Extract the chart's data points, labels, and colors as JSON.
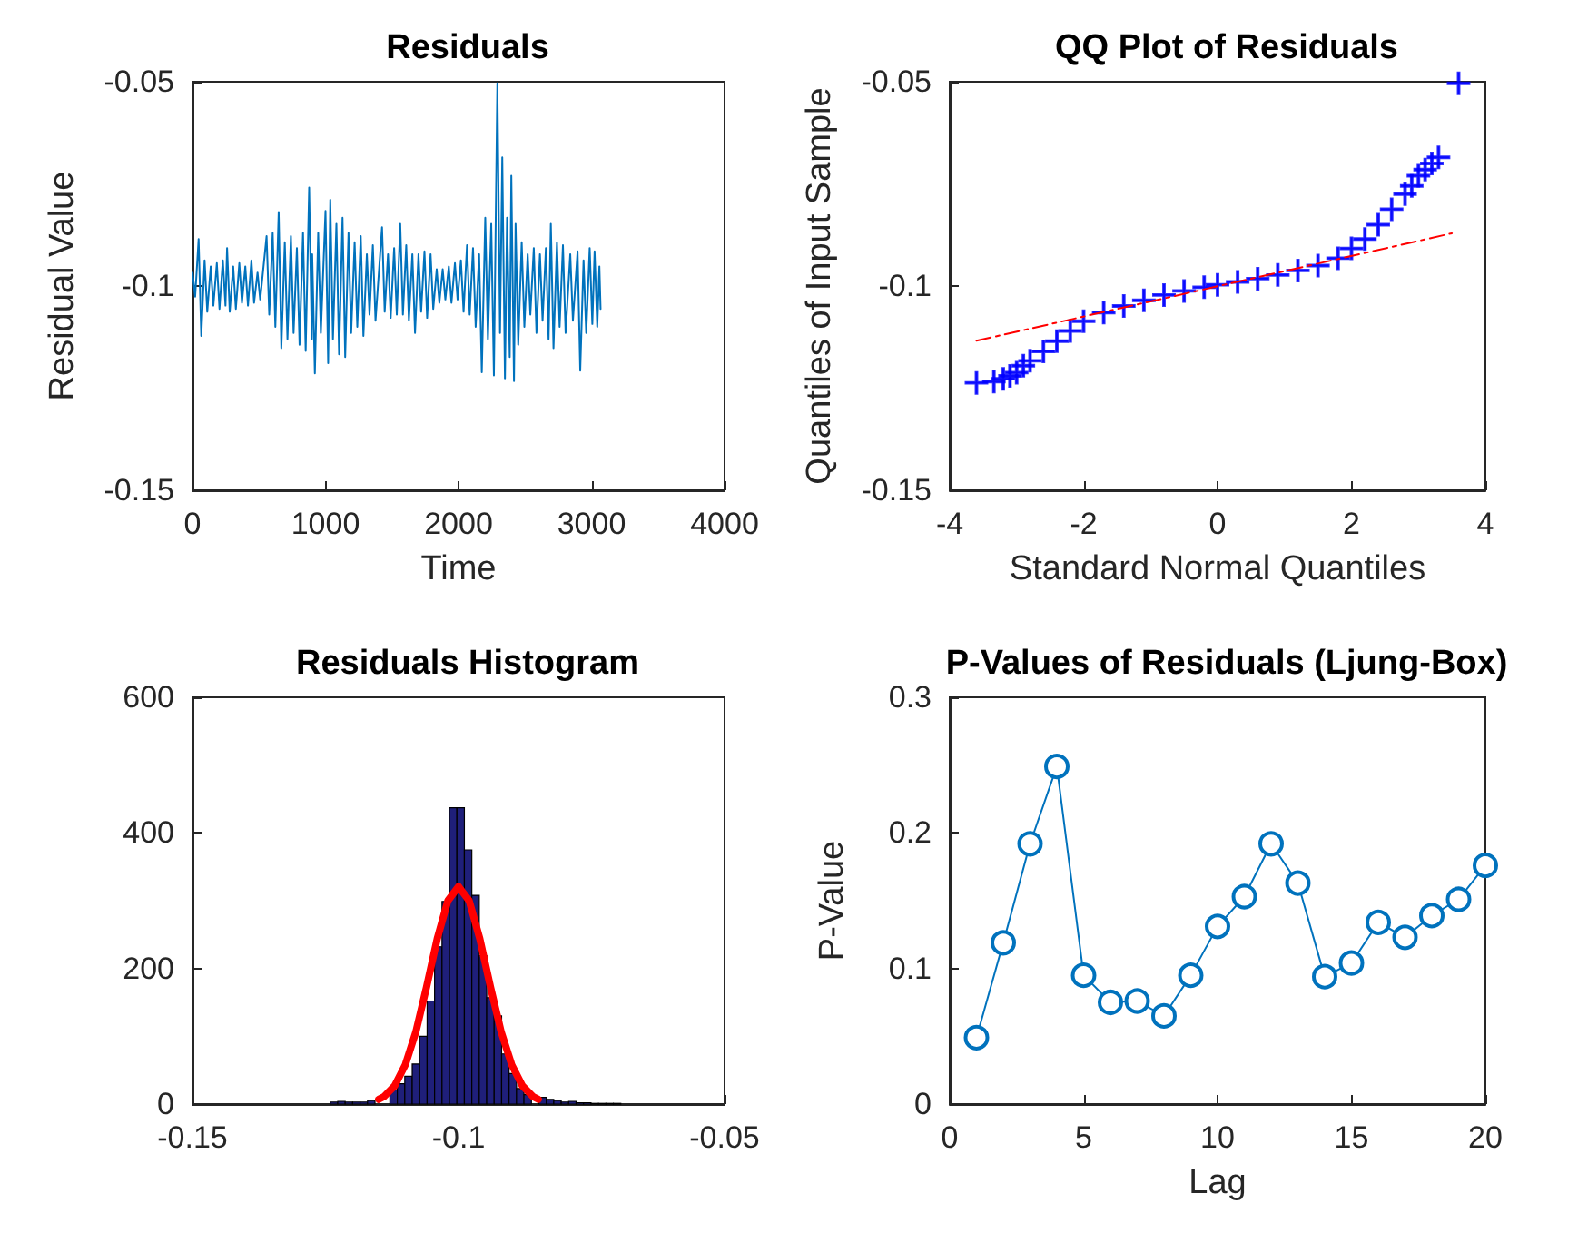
{
  "chart_data": [
    {
      "type": "line",
      "title": "Residuals",
      "xlabel": "Time",
      "ylabel": "Residual Value",
      "xlim": [
        0,
        4000
      ],
      "ylim": [
        -0.15,
        -0.05
      ],
      "xticks": [
        0,
        1000,
        2000,
        3000,
        4000
      ],
      "yticks": [
        -0.15,
        -0.1,
        -0.05
      ],
      "series": [
        {
          "color": "#0072bd",
          "x": [
            0,
            20,
            46,
            66,
            91,
            111,
            137,
            157,
            183,
            203,
            228,
            248,
            260,
            280,
            306,
            326,
            352,
            372,
            397,
            417,
            443,
            463,
            489,
            509,
            557,
            577,
            603,
            623,
            648,
            668,
            694,
            714,
            740,
            760,
            785,
            805,
            831,
            851,
            877,
            897,
            900,
            920,
            945,
            965,
            1000,
            1020,
            1036,
            1056,
            1082,
            1102,
            1128,
            1148,
            1173,
            1193,
            1219,
            1239,
            1265,
            1285,
            1311,
            1331,
            1356,
            1376,
            1425,
            1445,
            1470,
            1490,
            1516,
            1536,
            1562,
            1582,
            1607,
            1627,
            1653,
            1673,
            1699,
            1719,
            1744,
            1764,
            1790,
            1810,
            1836,
            1856,
            1881,
            1901,
            1927,
            1947,
            1973,
            1993,
            2018,
            2038,
            2064,
            2084,
            2109,
            2129,
            2155,
            2175,
            2201,
            2221,
            2246,
            2266,
            2292,
            2312,
            2329,
            2349,
            2365,
            2385,
            2397,
            2417,
            2429,
            2449,
            2475,
            2495,
            2520,
            2540,
            2566,
            2586,
            2612,
            2632,
            2657,
            2677,
            2694,
            2714,
            2740,
            2760,
            2785,
            2805,
            2840,
            2860,
            2895,
            2915,
            2940,
            2960,
            2986,
            3006,
            3023,
            3043,
            3059,
            3068
          ],
          "values": [
            -0.0967,
            -0.1026,
            -0.0885,
            -0.1122,
            -0.0937,
            -0.1063,
            -0.0952,
            -0.1048,
            -0.0944,
            -0.1056,
            -0.0937,
            -0.1048,
            -0.0907,
            -0.1063,
            -0.0952,
            -0.1056,
            -0.0944,
            -0.1041,
            -0.0952,
            -0.1048,
            -0.0937,
            -0.1041,
            -0.0967,
            -0.1033,
            -0.0878,
            -0.107,
            -0.087,
            -0.11,
            -0.0819,
            -0.1152,
            -0.0893,
            -0.113,
            -0.0878,
            -0.1115,
            -0.0907,
            -0.1144,
            -0.087,
            -0.1159,
            -0.0759,
            -0.113,
            -0.0922,
            -0.1214,
            -0.087,
            -0.1115,
            -0.0816,
            -0.1189,
            -0.0789,
            -0.113,
            -0.0848,
            -0.1167,
            -0.0833,
            -0.1174,
            -0.087,
            -0.1115,
            -0.0893,
            -0.11,
            -0.0878,
            -0.1122,
            -0.0922,
            -0.107,
            -0.09,
            -0.1085,
            -0.0856,
            -0.1063,
            -0.0922,
            -0.1078,
            -0.0907,
            -0.107,
            -0.0848,
            -0.107,
            -0.09,
            -0.1085,
            -0.0922,
            -0.1115,
            -0.0922,
            -0.1063,
            -0.0915,
            -0.1078,
            -0.0922,
            -0.1056,
            -0.0959,
            -0.1041,
            -0.0959,
            -0.1033,
            -0.0952,
            -0.1041,
            -0.0944,
            -0.1033,
            -0.0937,
            -0.1063,
            -0.09,
            -0.107,
            -0.0907,
            -0.11,
            -0.0922,
            -0.1211,
            -0.0833,
            -0.113,
            -0.0848,
            -0.1219,
            -0.0504,
            -0.1115,
            -0.0685,
            -0.1226,
            -0.0833,
            -0.1174,
            -0.073,
            -0.1233,
            -0.0848,
            -0.1144,
            -0.0893,
            -0.11,
            -0.0922,
            -0.107,
            -0.0907,
            -0.1115,
            -0.0922,
            -0.1085,
            -0.0907,
            -0.113,
            -0.0848,
            -0.1152,
            -0.0893,
            -0.11,
            -0.09,
            -0.1115,
            -0.0922,
            -0.1085,
            -0.0915,
            -0.1207,
            -0.0937,
            -0.1115,
            -0.0907,
            -0.1093,
            -0.0915,
            -0.11,
            -0.0952,
            -0.1056
          ]
        }
      ]
    },
    {
      "type": "scatter",
      "title": "QQ Plot of Residuals",
      "xlabel": "Standard Normal Quantiles",
      "ylabel": "Quantiles of Input Sample",
      "xlim": [
        -4,
        4
      ],
      "ylim": [
        -0.15,
        -0.05
      ],
      "xticks": [
        -4,
        -2,
        0,
        2,
        4
      ],
      "yticks": [
        -0.15,
        -0.1,
        -0.05
      ],
      "series": [
        {
          "color": "#0000ff",
          "marker": "cross",
          "x": [
            -3.6,
            -3.34,
            -3.2,
            -3.1,
            -3.0,
            -2.9,
            -2.8,
            -2.6,
            -2.4,
            -2.2,
            -2.0,
            -1.7,
            -1.4,
            -1.1,
            -0.8,
            -0.5,
            -0.2,
            0,
            0.3,
            0.6,
            0.9,
            1.2,
            1.5,
            1.8,
            2.0,
            2.2,
            2.4,
            2.6,
            2.8,
            2.9,
            3.0,
            3.1,
            3.2,
            3.3,
            3.6
          ],
          "values": [
            -0.1237,
            -0.1234,
            -0.1227,
            -0.122,
            -0.1212,
            -0.1195,
            -0.1183,
            -0.116,
            -0.1135,
            -0.111,
            -0.1086,
            -0.1065,
            -0.1049,
            -0.1035,
            -0.1022,
            -0.1012,
            -0.1003,
            -0.0997,
            -0.099,
            -0.0982,
            -0.0973,
            -0.0962,
            -0.095,
            -0.0932,
            -0.0908,
            -0.0885,
            -0.085,
            -0.0812,
            -0.0775,
            -0.0755,
            -0.073,
            -0.0715,
            -0.07,
            -0.0685,
            -0.0504
          ]
        },
        {
          "type": "line",
          "color": "#ff0000",
          "line_style": "dashed",
          "x": [
            -3.6,
            3.5
          ],
          "values": [
            -0.1134,
            -0.0871
          ]
        }
      ]
    },
    {
      "type": "histogram",
      "title": "Residuals Histogram",
      "xlim": [
        -0.15,
        -0.05
      ],
      "ylim": [
        0,
        600
      ],
      "xticks": [
        -0.15,
        -0.1,
        -0.05
      ],
      "yticks": [
        0,
        200,
        400,
        600
      ],
      "series": [
        {
          "color": "#1f1f7a",
          "bins": [
            -0.1241,
            -0.1227,
            -0.1213,
            -0.1199,
            -0.1185,
            -0.1171,
            -0.1157,
            -0.1143,
            -0.1129,
            -0.1115,
            -0.1101,
            -0.1087,
            -0.1073,
            -0.1059,
            -0.1045,
            -0.1031,
            -0.1017,
            -0.1003,
            -0.0989,
            -0.0975,
            -0.0961,
            -0.0947,
            -0.0933,
            -0.0919,
            -0.0905,
            -0.0891,
            -0.0877,
            -0.0863,
            -0.0849,
            -0.0835,
            -0.0821,
            -0.0807,
            -0.0793,
            -0.0779,
            -0.0765,
            -0.0751,
            -0.0737,
            -0.0723,
            -0.0709,
            -0.0695
          ],
          "values": [
            3,
            4,
            3,
            3,
            3,
            5,
            null,
            null,
            21,
            30,
            41,
            59,
            100,
            152,
            232,
            299,
            437,
            437,
            375,
            308,
            219,
            157,
            130,
            74,
            45,
            23,
            14,
            null,
            10,
            7,
            5,
            3,
            4,
            2,
            2,
            1,
            1,
            1,
            1
          ]
        },
        {
          "type": "line",
          "color": "#ff0000",
          "x": [
            -0.115,
            -0.114,
            -0.112,
            -0.11,
            -0.108,
            -0.106,
            -0.104,
            -0.102,
            -0.1,
            -0.098,
            -0.096,
            -0.094,
            -0.092,
            -0.09,
            -0.088,
            -0.086,
            -0.085
          ],
          "values": [
            7,
            11,
            27,
            58,
            107,
            173,
            244,
            300,
            321,
            300,
            244,
            173,
            107,
            58,
            27,
            11,
            7
          ]
        }
      ]
    },
    {
      "type": "line",
      "title": "P-Values of Residuals (Ljung-Box)",
      "xlabel": "Lag",
      "ylabel": "P-Value",
      "xlim": [
        0,
        20
      ],
      "ylim": [
        0,
        0.3
      ],
      "xticks": [
        0,
        5,
        10,
        15,
        20
      ],
      "yticks": [
        0,
        0.1,
        0.2,
        0.3
      ],
      "series": [
        {
          "color": "#0072bd",
          "marker": "circle",
          "x": [
            1,
            2,
            3,
            4,
            5,
            6,
            7,
            8,
            9,
            10,
            11,
            12,
            13,
            14,
            15,
            16,
            17,
            18,
            19,
            20
          ],
          "values": [
            0.049,
            0.119,
            0.192,
            0.249,
            0.095,
            0.075,
            0.076,
            0.065,
            0.095,
            0.131,
            0.153,
            0.192,
            0.163,
            0.094,
            0.104,
            0.134,
            0.123,
            0.139,
            0.151,
            0.176
          ]
        }
      ]
    }
  ]
}
